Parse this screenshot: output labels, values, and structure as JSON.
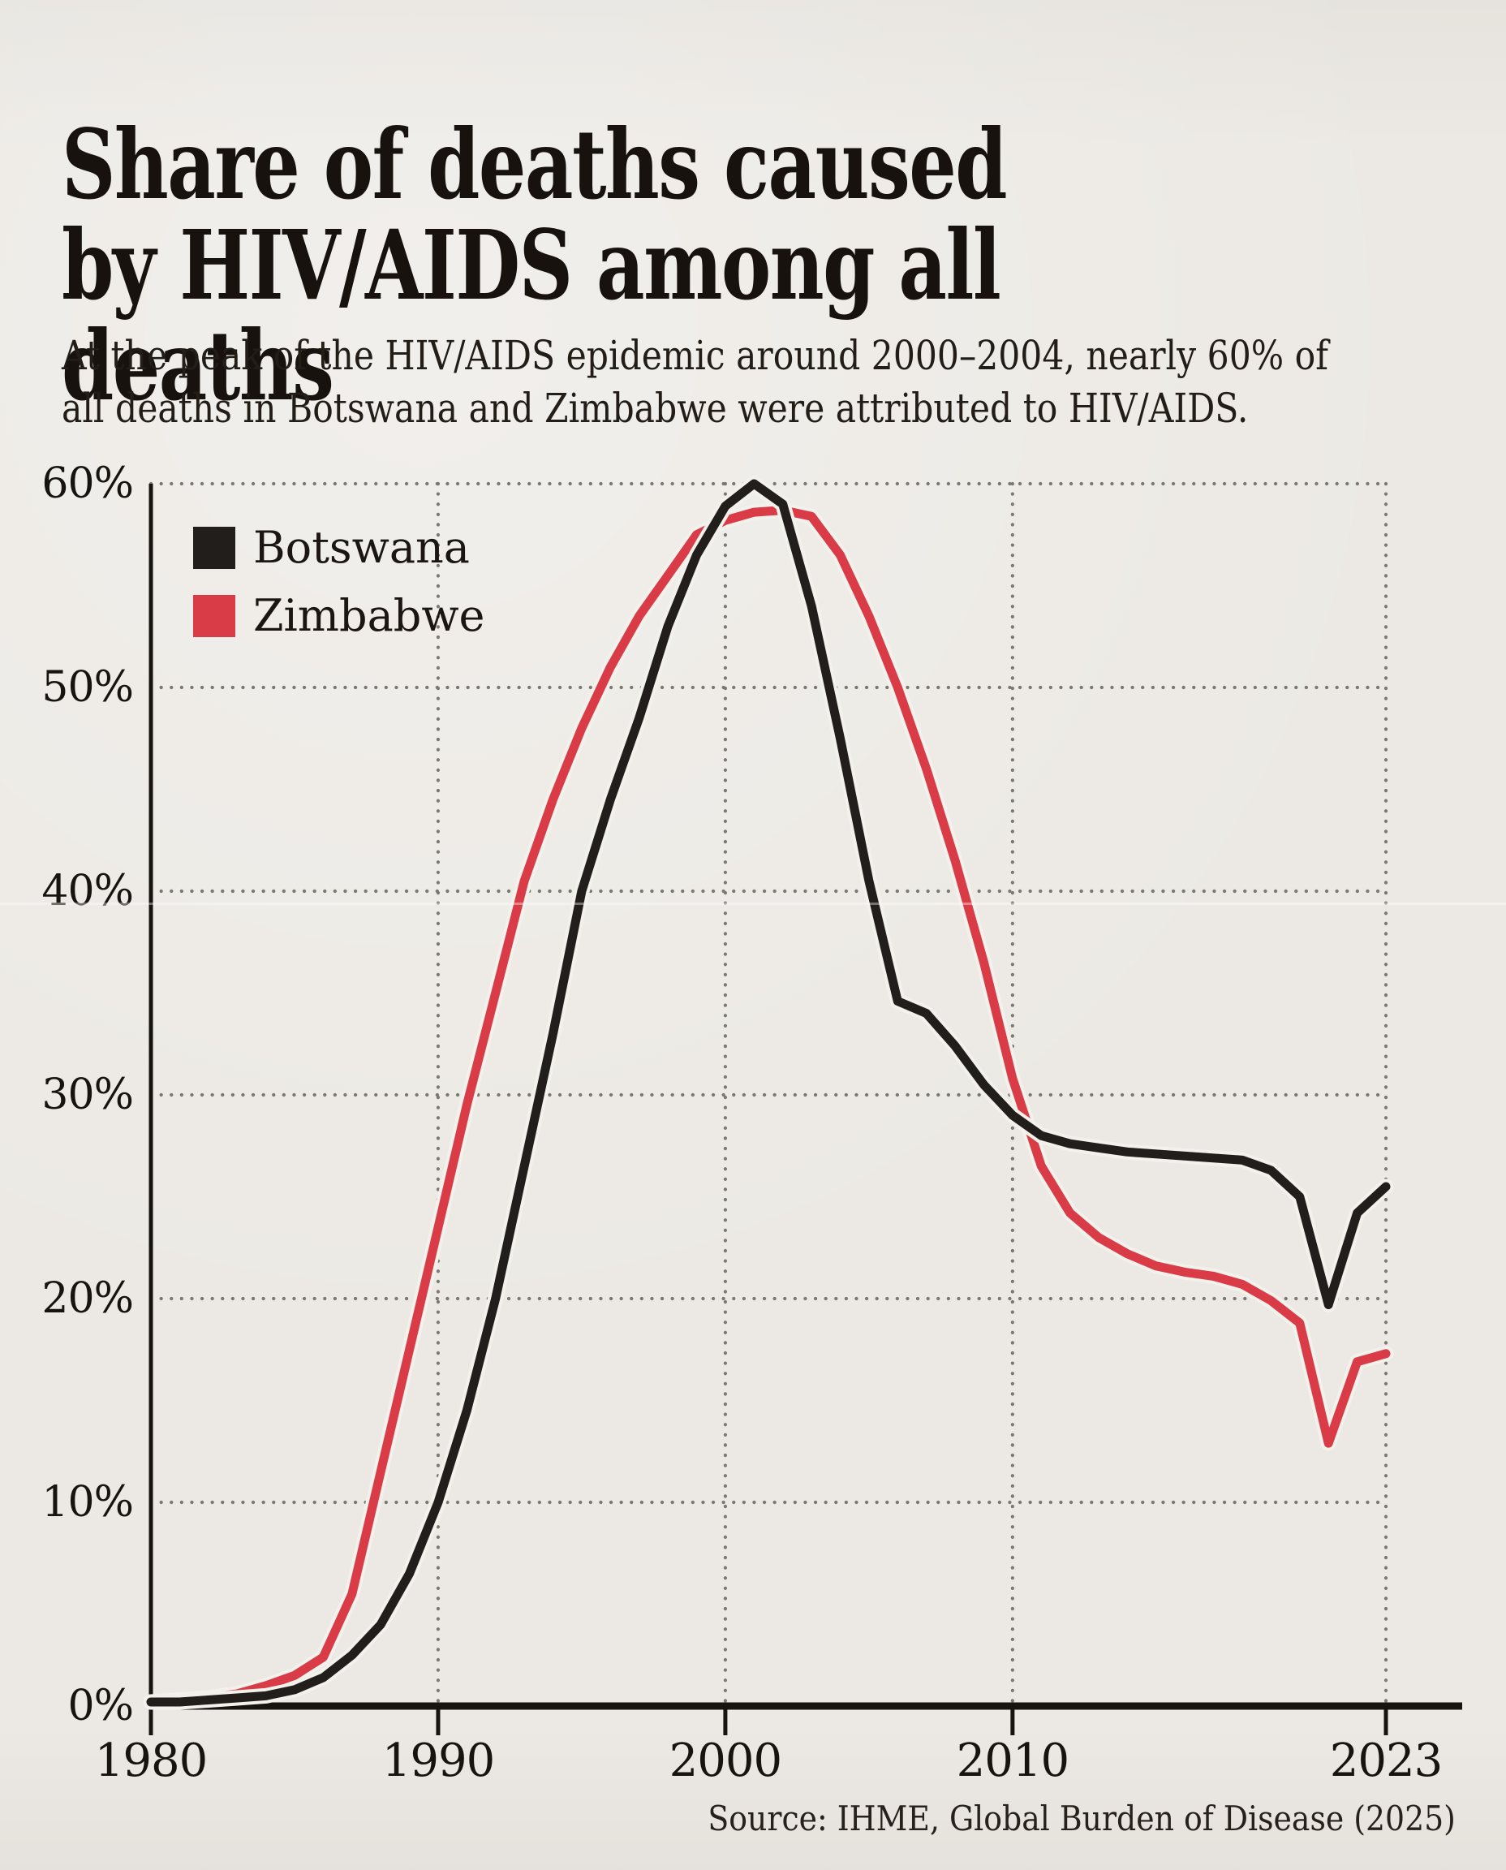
{
  "colors": {
    "background": "#ece9e4",
    "text": "#17120e",
    "axis": "#17130e",
    "grid_dots": "#7b7871",
    "line_casing": "#f3f1ec",
    "botswana": "#221e1b",
    "zimbabwe": "#d93c47"
  },
  "chart_data": {
    "type": "line",
    "title": "Share of deaths caused by HIV/AIDS among all deaths",
    "subtitle": "At the peak of the HIV/AIDS epidemic around 2000–2004, nearly 60% of all deaths in Botswana and Zimbabwe were attributed to HIV/AIDS.",
    "source": "Source: IHME, Global Burden of Disease (2025)",
    "xlabel": "",
    "ylabel": "",
    "xlim": [
      1980,
      2023
    ],
    "ylim": [
      0,
      60
    ],
    "grid": "dotted",
    "legend_position": "top-left-inside",
    "xticks": [
      1980,
      1990,
      2000,
      2010,
      2023
    ],
    "xtick_labels": [
      "1980",
      "1990",
      "2000",
      "2010",
      "2023"
    ],
    "xgridlines": [
      1990,
      2000,
      2010,
      2023
    ],
    "yticks": [
      0,
      10,
      20,
      30,
      40,
      50,
      60
    ],
    "ytick_labels": [
      "0%",
      "10%",
      "20%",
      "30%",
      "40%",
      "50%",
      "60%"
    ],
    "x": [
      1980,
      1981,
      1982,
      1983,
      1984,
      1985,
      1986,
      1987,
      1988,
      1989,
      1990,
      1991,
      1992,
      1993,
      1994,
      1995,
      1996,
      1997,
      1998,
      1999,
      2000,
      2001,
      2002,
      2003,
      2004,
      2005,
      2006,
      2007,
      2008,
      2009,
      2010,
      2011,
      2012,
      2013,
      2014,
      2015,
      2016,
      2017,
      2018,
      2019,
      2020,
      2021,
      2022,
      2023
    ],
    "series": [
      {
        "name": "Botswana",
        "color": "#221e1b",
        "values": [
          0.2,
          0.2,
          0.3,
          0.4,
          0.5,
          0.8,
          1.4,
          2.5,
          4.0,
          6.5,
          10.0,
          14.5,
          20.0,
          26.5,
          33.0,
          40.0,
          44.5,
          48.5,
          53.0,
          56.5,
          58.9,
          60.0,
          59.0,
          54.0,
          47.5,
          40.5,
          34.6,
          34.0,
          32.4,
          30.5,
          29.0,
          28.0,
          27.6,
          27.4,
          27.2,
          27.1,
          27.0,
          26.9,
          26.8,
          26.3,
          25.0,
          19.7,
          24.2,
          25.5
        ]
      },
      {
        "name": "Zimbabwe",
        "color": "#d93c47",
        "values": [
          0.2,
          0.3,
          0.4,
          0.6,
          1.0,
          1.5,
          2.4,
          5.5,
          11.5,
          17.5,
          23.5,
          29.5,
          35.0,
          40.5,
          44.5,
          48.0,
          51.0,
          53.5,
          55.5,
          57.5,
          58.2,
          58.6,
          58.7,
          58.4,
          56.5,
          53.5,
          50.0,
          46.0,
          41.5,
          36.5,
          30.8,
          26.5,
          24.2,
          23.0,
          22.2,
          21.6,
          21.3,
          21.1,
          20.7,
          19.9,
          18.8,
          12.9,
          16.9,
          17.3
        ]
      }
    ]
  }
}
